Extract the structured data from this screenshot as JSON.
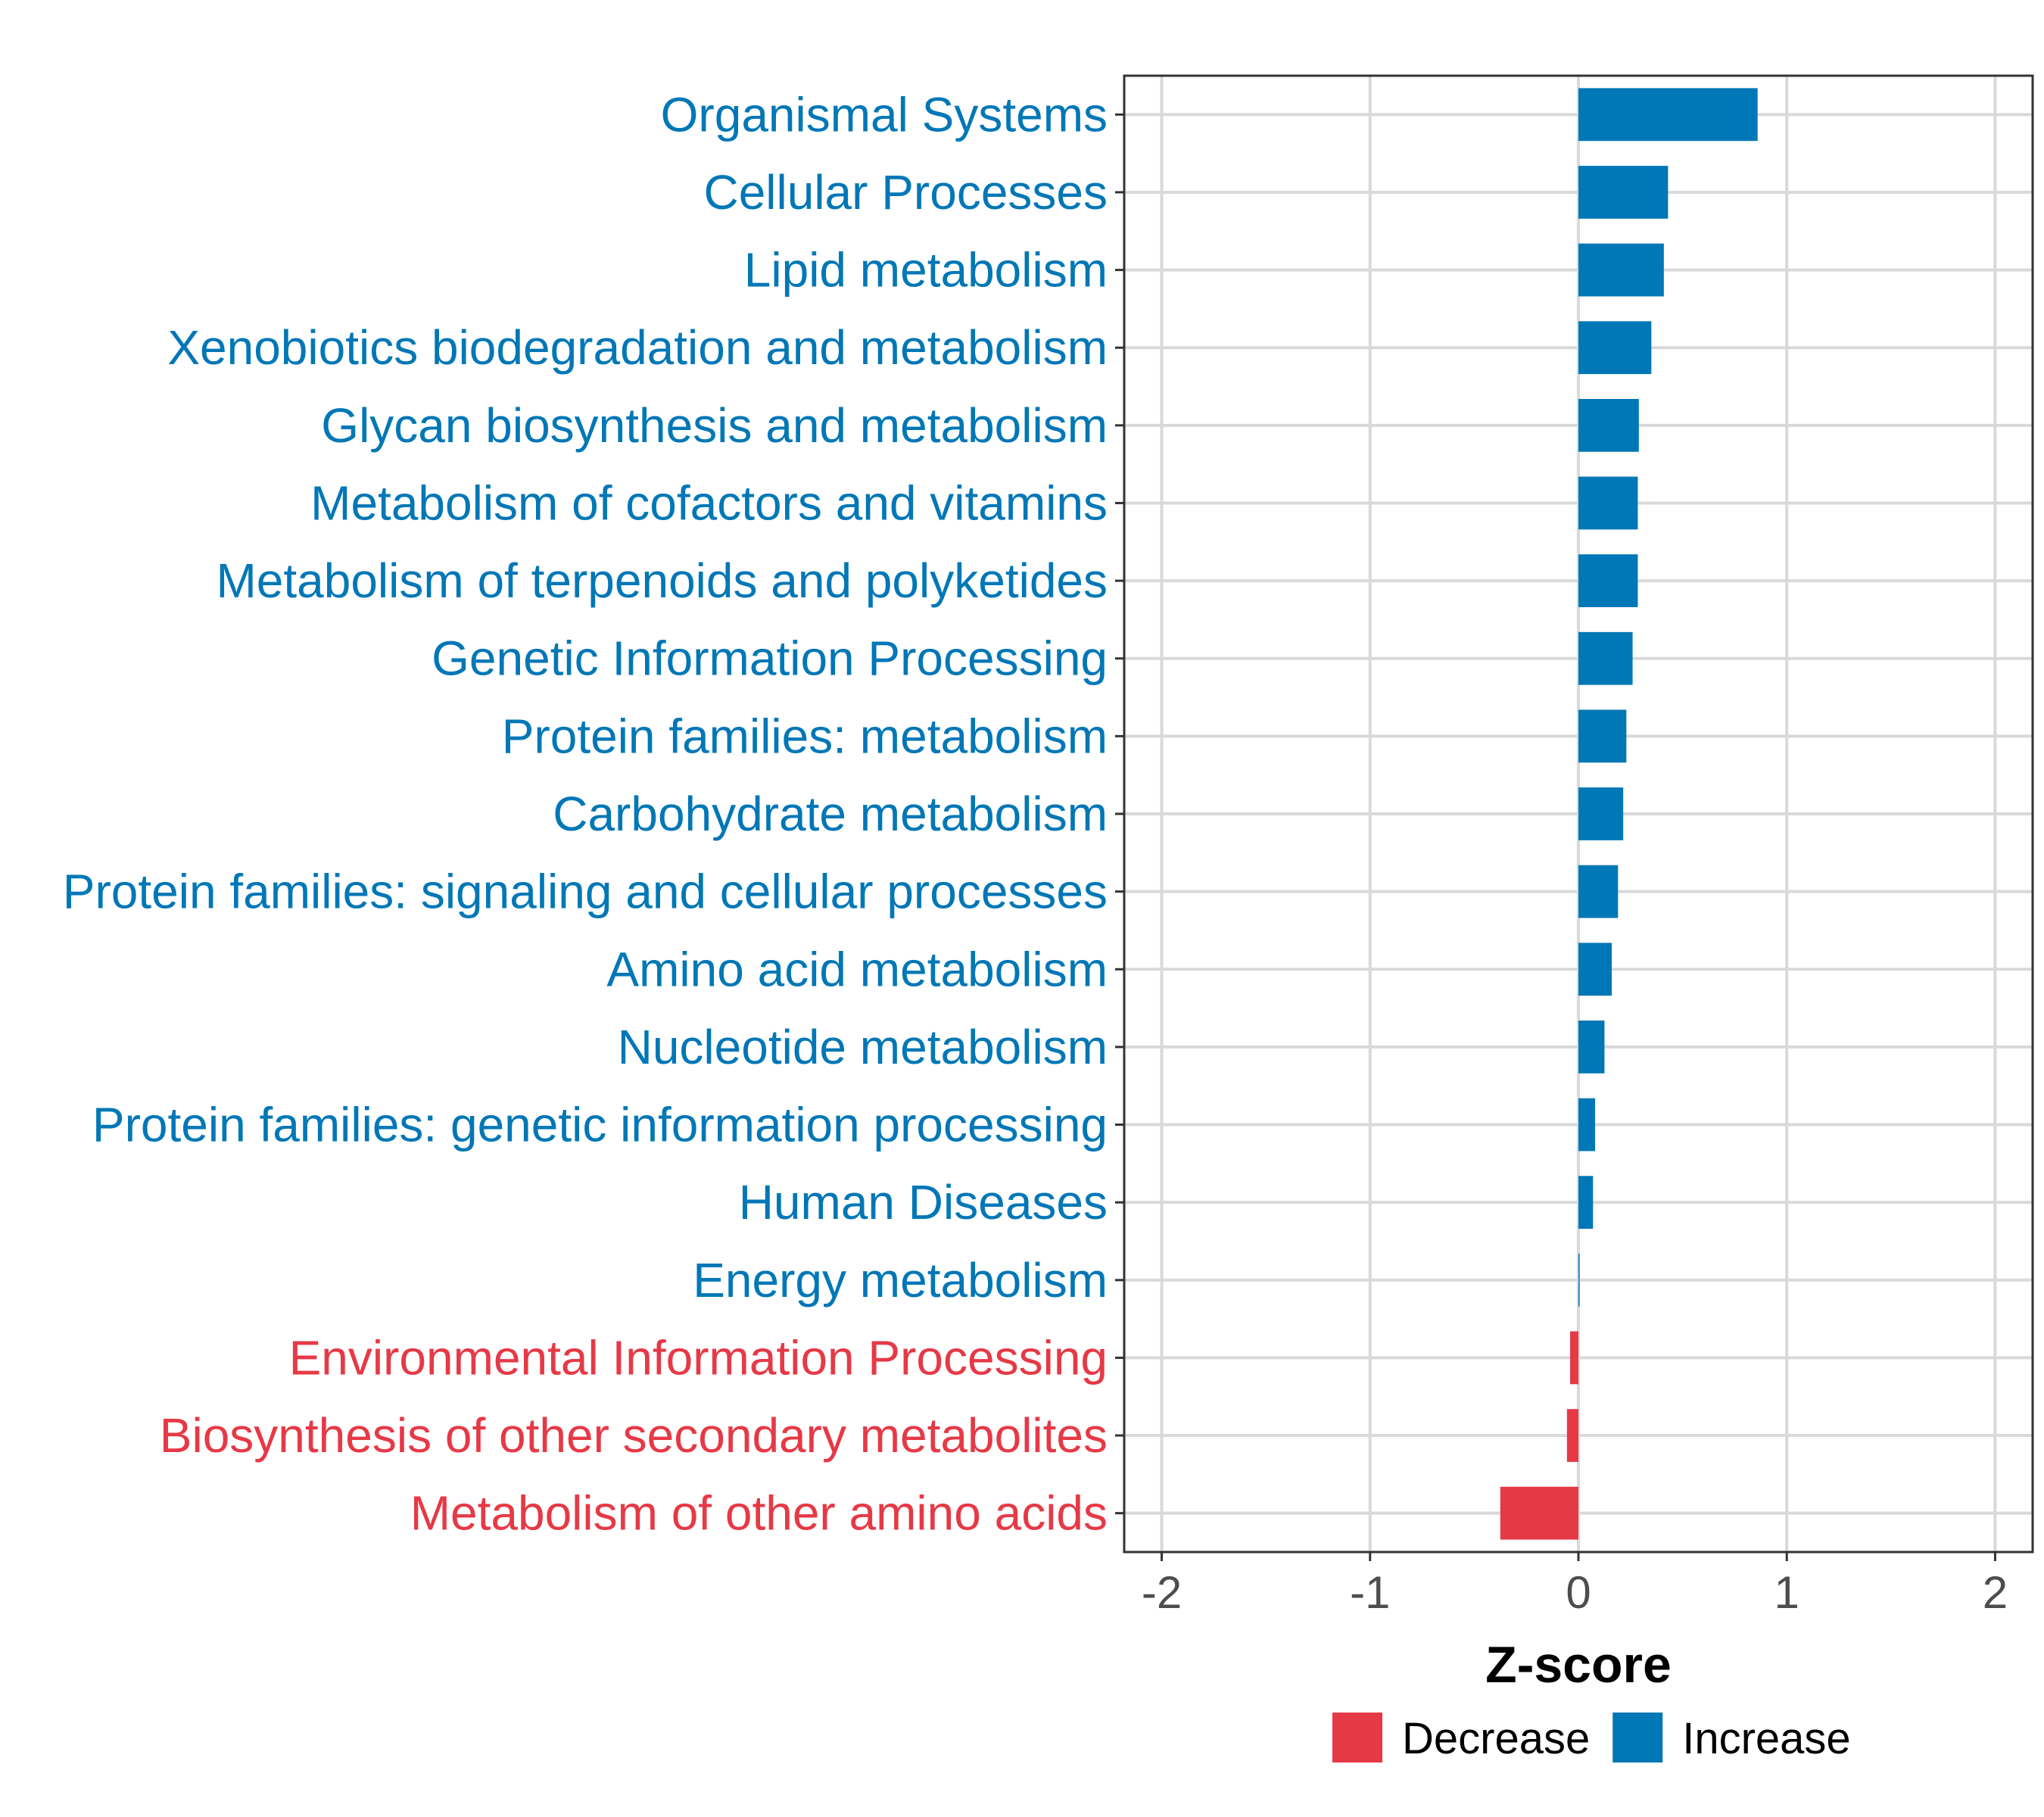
{
  "chart_data": {
    "type": "bar",
    "orientation": "horizontal",
    "xlabel": "Z-score",
    "xlim": [
      -2,
      2
    ],
    "xticks": [
      -2,
      -1,
      0,
      1,
      2
    ],
    "xtick_labels": [
      "-2",
      "-1",
      "0",
      "1",
      "2"
    ],
    "grid": true,
    "legend_position": "bottom",
    "colors": {
      "Decrease": "#e63946",
      "Increase": "#0077b6"
    },
    "legend": [
      {
        "label": "Decrease",
        "color": "#e63946"
      },
      {
        "label": "Increase",
        "color": "#0077b6"
      }
    ],
    "categories": [
      "Organismal Systems",
      "Cellular Processes",
      "Lipid metabolism",
      "Xenobiotics biodegradation and metabolism",
      "Glycan biosynthesis and metabolism",
      "Metabolism of cofactors and vitamins",
      "Metabolism of terpenoids and polyketides",
      "Genetic Information Processing",
      "Protein families: metabolism",
      "Carbohydrate metabolism",
      "Protein families: signaling and cellular processes",
      "Amino acid metabolism",
      "Nucleotide metabolism",
      "Protein families: genetic information processing",
      "Human Diseases",
      "Energy metabolism",
      "Environmental Information Processing",
      "Biosynthesis of other secondary metabolites",
      "Metabolism of other amino acids"
    ],
    "values": [
      0.86,
      0.43,
      0.41,
      0.35,
      0.29,
      0.285,
      0.285,
      0.26,
      0.23,
      0.215,
      0.19,
      0.16,
      0.125,
      0.08,
      0.07,
      0.005,
      -0.04,
      -0.055,
      -0.375
    ],
    "direction": [
      "Increase",
      "Increase",
      "Increase",
      "Increase",
      "Increase",
      "Increase",
      "Increase",
      "Increase",
      "Increase",
      "Increase",
      "Increase",
      "Increase",
      "Increase",
      "Increase",
      "Increase",
      "Increase",
      "Decrease",
      "Decrease",
      "Decrease"
    ]
  }
}
